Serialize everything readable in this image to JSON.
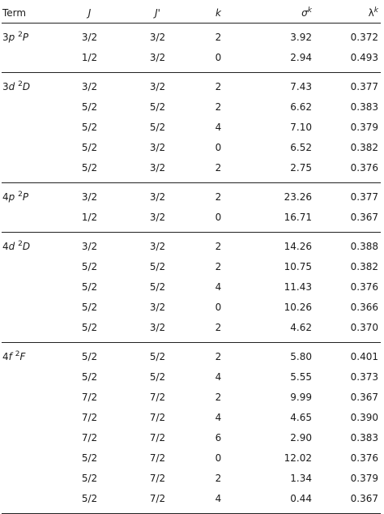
{
  "headers": {
    "term": "Term",
    "j": "J",
    "jp": "J'",
    "k": "k",
    "sigma": "σ",
    "sigma_sup": "k",
    "lambda": "λ",
    "lambda_sup": "k"
  },
  "groups": [
    {
      "term": {
        "n": "3",
        "l": "p",
        "mult": "2",
        "L": "P"
      },
      "rows": [
        {
          "j": "3/2",
          "jp": "3/2",
          "k": "2",
          "sigma": "3.92",
          "lambda": "0.372"
        },
        {
          "j": "1/2",
          "jp": "3/2",
          "k": "0",
          "sigma": "2.94",
          "lambda": "0.493"
        }
      ]
    },
    {
      "term": {
        "n": "3",
        "l": "d",
        "mult": "2",
        "L": "D"
      },
      "rows": [
        {
          "j": "3/2",
          "jp": "3/2",
          "k": "2",
          "sigma": "7.43",
          "lambda": "0.377"
        },
        {
          "j": "5/2",
          "jp": "5/2",
          "k": "2",
          "sigma": "6.62",
          "lambda": "0.383"
        },
        {
          "j": "5/2",
          "jp": "5/2",
          "k": "4",
          "sigma": "7.10",
          "lambda": "0.379"
        },
        {
          "j": "5/2",
          "jp": "3/2",
          "k": "0",
          "sigma": "6.52",
          "lambda": "0.382"
        },
        {
          "j": "5/2",
          "jp": "3/2",
          "k": "2",
          "sigma": "2.75",
          "lambda": "0.376"
        }
      ]
    },
    {
      "term": {
        "n": "4",
        "l": "p",
        "mult": "2",
        "L": "P"
      },
      "rows": [
        {
          "j": "3/2",
          "jp": "3/2",
          "k": "2",
          "sigma": "23.26",
          "lambda": "0.377"
        },
        {
          "j": "1/2",
          "jp": "3/2",
          "k": "0",
          "sigma": "16.71",
          "lambda": "0.367"
        }
      ]
    },
    {
      "term": {
        "n": "4",
        "l": "d",
        "mult": "2",
        "L": "D"
      },
      "rows": [
        {
          "j": "3/2",
          "jp": "3/2",
          "k": "2",
          "sigma": "14.26",
          "lambda": "0.388"
        },
        {
          "j": "5/2",
          "jp": "5/2",
          "k": "2",
          "sigma": "10.75",
          "lambda": "0.382"
        },
        {
          "j": "5/2",
          "jp": "5/2",
          "k": "4",
          "sigma": "11.43",
          "lambda": "0.376"
        },
        {
          "j": "5/2",
          "jp": "3/2",
          "k": "0",
          "sigma": "10.26",
          "lambda": "0.366"
        },
        {
          "j": "5/2",
          "jp": "3/2",
          "k": "2",
          "sigma": "4.62",
          "lambda": "0.370"
        }
      ]
    },
    {
      "term": {
        "n": "4",
        "l": "f",
        "mult": "2",
        "L": "F"
      },
      "rows": [
        {
          "j": "5/2",
          "jp": "5/2",
          "k": "2",
          "sigma": "5.80",
          "lambda": "0.401"
        },
        {
          "j": "5/2",
          "jp": "5/2",
          "k": "4",
          "sigma": "5.55",
          "lambda": "0.373"
        },
        {
          "j": "7/2",
          "jp": "7/2",
          "k": "2",
          "sigma": "9.99",
          "lambda": "0.367"
        },
        {
          "j": "7/2",
          "jp": "7/2",
          "k": "4",
          "sigma": "4.65",
          "lambda": "0.390"
        },
        {
          "j": "7/2",
          "jp": "7/2",
          "k": "6",
          "sigma": "2.90",
          "lambda": "0.383"
        },
        {
          "j": "5/2",
          "jp": "7/2",
          "k": "0",
          "sigma": "12.02",
          "lambda": "0.376"
        },
        {
          "j": "5/2",
          "jp": "7/2",
          "k": "2",
          "sigma": "1.34",
          "lambda": "0.379"
        },
        {
          "j": "5/2",
          "jp": "7/2",
          "k": "4",
          "sigma": "0.44",
          "lambda": "0.367"
        }
      ]
    }
  ]
}
